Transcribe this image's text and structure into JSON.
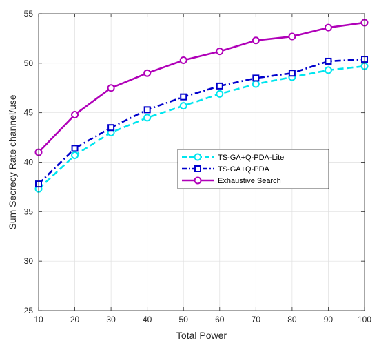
{
  "chart_data": {
    "type": "line",
    "xlabel": "Total Power",
    "ylabel": "Sum Secrecy Rate channel/use",
    "xlim": [
      10,
      100
    ],
    "ylim": [
      25,
      55
    ],
    "x_ticks": [
      10,
      20,
      30,
      40,
      50,
      60,
      70,
      80,
      90,
      100
    ],
    "y_ticks": [
      25,
      30,
      35,
      40,
      45,
      50,
      55
    ],
    "grid": true,
    "legend_position": "right",
    "x": [
      10,
      20,
      30,
      40,
      50,
      60,
      70,
      80,
      90,
      100
    ],
    "series": [
      {
        "name": "TS-GA+Q-PDA-Lite",
        "values": [
          37.3,
          40.7,
          43.0,
          44.5,
          45.7,
          46.9,
          47.9,
          48.6,
          49.3,
          49.7
        ],
        "color": "#00e5ee",
        "line_style": "dashed",
        "marker": "circle"
      },
      {
        "name": "TS-GA+Q-PDA",
        "values": [
          37.8,
          41.4,
          43.5,
          45.3,
          46.6,
          47.7,
          48.5,
          49.0,
          50.2,
          50.4
        ],
        "color": "#0000cc",
        "line_style": "dashdot",
        "marker": "square"
      },
      {
        "name": "Exhaustive Search",
        "values": [
          41.0,
          44.8,
          47.5,
          49.0,
          50.3,
          51.2,
          52.3,
          52.7,
          53.6,
          54.1
        ],
        "color": "#b000b8",
        "line_style": "solid",
        "marker": "circle"
      }
    ]
  }
}
